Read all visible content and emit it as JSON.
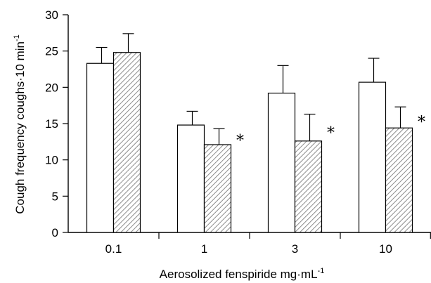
{
  "chart_data": {
    "type": "bar",
    "categories": [
      "0.1",
      "1",
      "3",
      "10"
    ],
    "series": [
      {
        "values": [
          23.3,
          14.8,
          19.2,
          20.7
        ],
        "errors": [
          2.2,
          1.9,
          3.8,
          3.3
        ],
        "fill": "open",
        "color": "#ffffff"
      },
      {
        "values": [
          24.8,
          12.1,
          12.6,
          14.4
        ],
        "errors": [
          2.6,
          2.2,
          3.7,
          2.9
        ],
        "fill": "hatched",
        "color": "#cccccc"
      }
    ],
    "significance": [
      "",
      "*",
      "*",
      "*"
    ],
    "ylim": [
      0,
      30
    ],
    "yticks": [
      "0",
      "5",
      "10",
      "15",
      "20",
      "25",
      "30"
    ],
    "ylabel": {
      "main": "Cough frequency  coughs·10 min",
      "sup": "-1"
    },
    "xlabel": {
      "main": "Aerosolized fenspiride  mg·mL",
      "sup": "-1"
    },
    "grid": false,
    "legend": "none"
  }
}
